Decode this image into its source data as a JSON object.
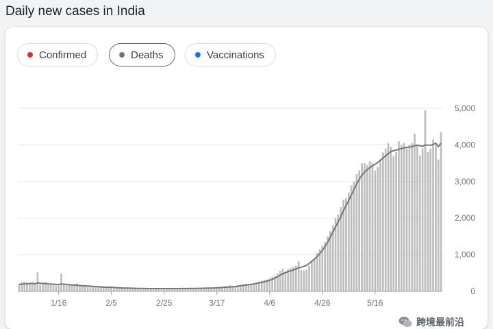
{
  "title": "Daily new cases in India",
  "filters": [
    {
      "label": "Confirmed",
      "color": "#d93025",
      "active": false
    },
    {
      "label": "Deaths",
      "color": "#757575",
      "active": true
    },
    {
      "label": "Vaccinations",
      "color": "#1a73e8",
      "active": false
    }
  ],
  "chart_data": {
    "type": "bar",
    "series_name": "Deaths",
    "start_date": "2021-01-01",
    "xticks": [
      "1/16",
      "2/5",
      "2/25",
      "3/17",
      "4/6",
      "4/26",
      "5/16"
    ],
    "yticks": [
      0,
      1000,
      2000,
      3000,
      4000,
      5000
    ],
    "ytick_labels": [
      "0",
      "1,000",
      "2,000",
      "3,000",
      "4,000",
      "5,000"
    ],
    "ylim": [
      0,
      5000
    ],
    "bar_color": "#bdbdbd",
    "line_color": "#757575",
    "values": [
      180,
      250,
      260,
      240,
      230,
      250,
      200,
      520,
      180,
      230,
      250,
      200,
      200,
      170,
      160,
      160,
      480,
      200,
      190,
      190,
      160,
      200,
      210,
      170,
      160,
      140,
      130,
      140,
      120,
      130,
      120,
      110,
      110,
      110,
      100,
      100,
      100,
      95,
      90,
      90,
      90,
      80,
      80,
      80,
      70,
      80,
      80,
      70,
      70,
      70,
      80,
      80,
      70,
      70,
      80,
      80,
      70,
      70,
      80,
      70,
      80,
      80,
      70,
      80,
      80,
      70,
      80,
      80,
      80,
      80,
      90,
      90,
      100,
      100,
      90,
      100,
      110,
      120,
      140,
      130,
      160,
      140,
      150,
      170,
      180,
      190,
      200,
      160,
      190,
      200,
      240,
      260,
      280,
      310,
      320,
      350,
      400,
      420,
      480,
      560,
      620,
      540,
      600,
      630,
      660,
      700,
      820,
      580,
      570,
      590,
      700,
      800,
      900,
      1050,
      1150,
      1250,
      1350,
      1500,
      1650,
      1800,
      2000,
      2100,
      2300,
      2500,
      2550,
      2700,
      2900,
      3000,
      3200,
      3300,
      3500,
      3500,
      3450,
      3550,
      3500,
      3300,
      3400,
      3600,
      3800,
      3900,
      4050,
      3950,
      3700,
      3800,
      4100,
      4000,
      4050,
      3900,
      4000,
      4050,
      4300,
      4000,
      3700,
      3900,
      4950,
      3800,
      3900,
      4150,
      4000,
      3600,
      4350
    ],
    "moving_avg": [
      190,
      195,
      200,
      205,
      210,
      215,
      200,
      230,
      220,
      215,
      210,
      205,
      200,
      195,
      190,
      185,
      200,
      195,
      190,
      180,
      175,
      170,
      165,
      160,
      155,
      150,
      145,
      140,
      135,
      130,
      125,
      120,
      115,
      112,
      110,
      108,
      105,
      100,
      95,
      92,
      90,
      88,
      86,
      84,
      82,
      80,
      80,
      78,
      76,
      75,
      75,
      75,
      74,
      74,
      74,
      75,
      75,
      75,
      75,
      75,
      75,
      76,
      76,
      77,
      77,
      78,
      78,
      79,
      80,
      82,
      84,
      86,
      88,
      90,
      92,
      95,
      100,
      105,
      110,
      115,
      120,
      125,
      130,
      140,
      150,
      160,
      170,
      180,
      190,
      200,
      215,
      230,
      245,
      260,
      280,
      300,
      330,
      360,
      400,
      440,
      480,
      510,
      540,
      560,
      580,
      610,
      640,
      660,
      680,
      710,
      760,
      820,
      880,
      950,
      1030,
      1120,
      1220,
      1340,
      1480,
      1620,
      1760,
      1900,
      2040,
      2200,
      2340,
      2480,
      2630,
      2780,
      2930,
      3060,
      3170,
      3260,
      3320,
      3380,
      3430,
      3470,
      3520,
      3580,
      3640,
      3700,
      3760,
      3820,
      3840,
      3860,
      3880,
      3900,
      3920,
      3930,
      3940,
      3950,
      3980,
      3990,
      3980,
      3960,
      4000,
      3990,
      3990,
      4010,
      4050,
      3950,
      4050
    ]
  },
  "watermark": {
    "text": "跨境最前沿"
  }
}
